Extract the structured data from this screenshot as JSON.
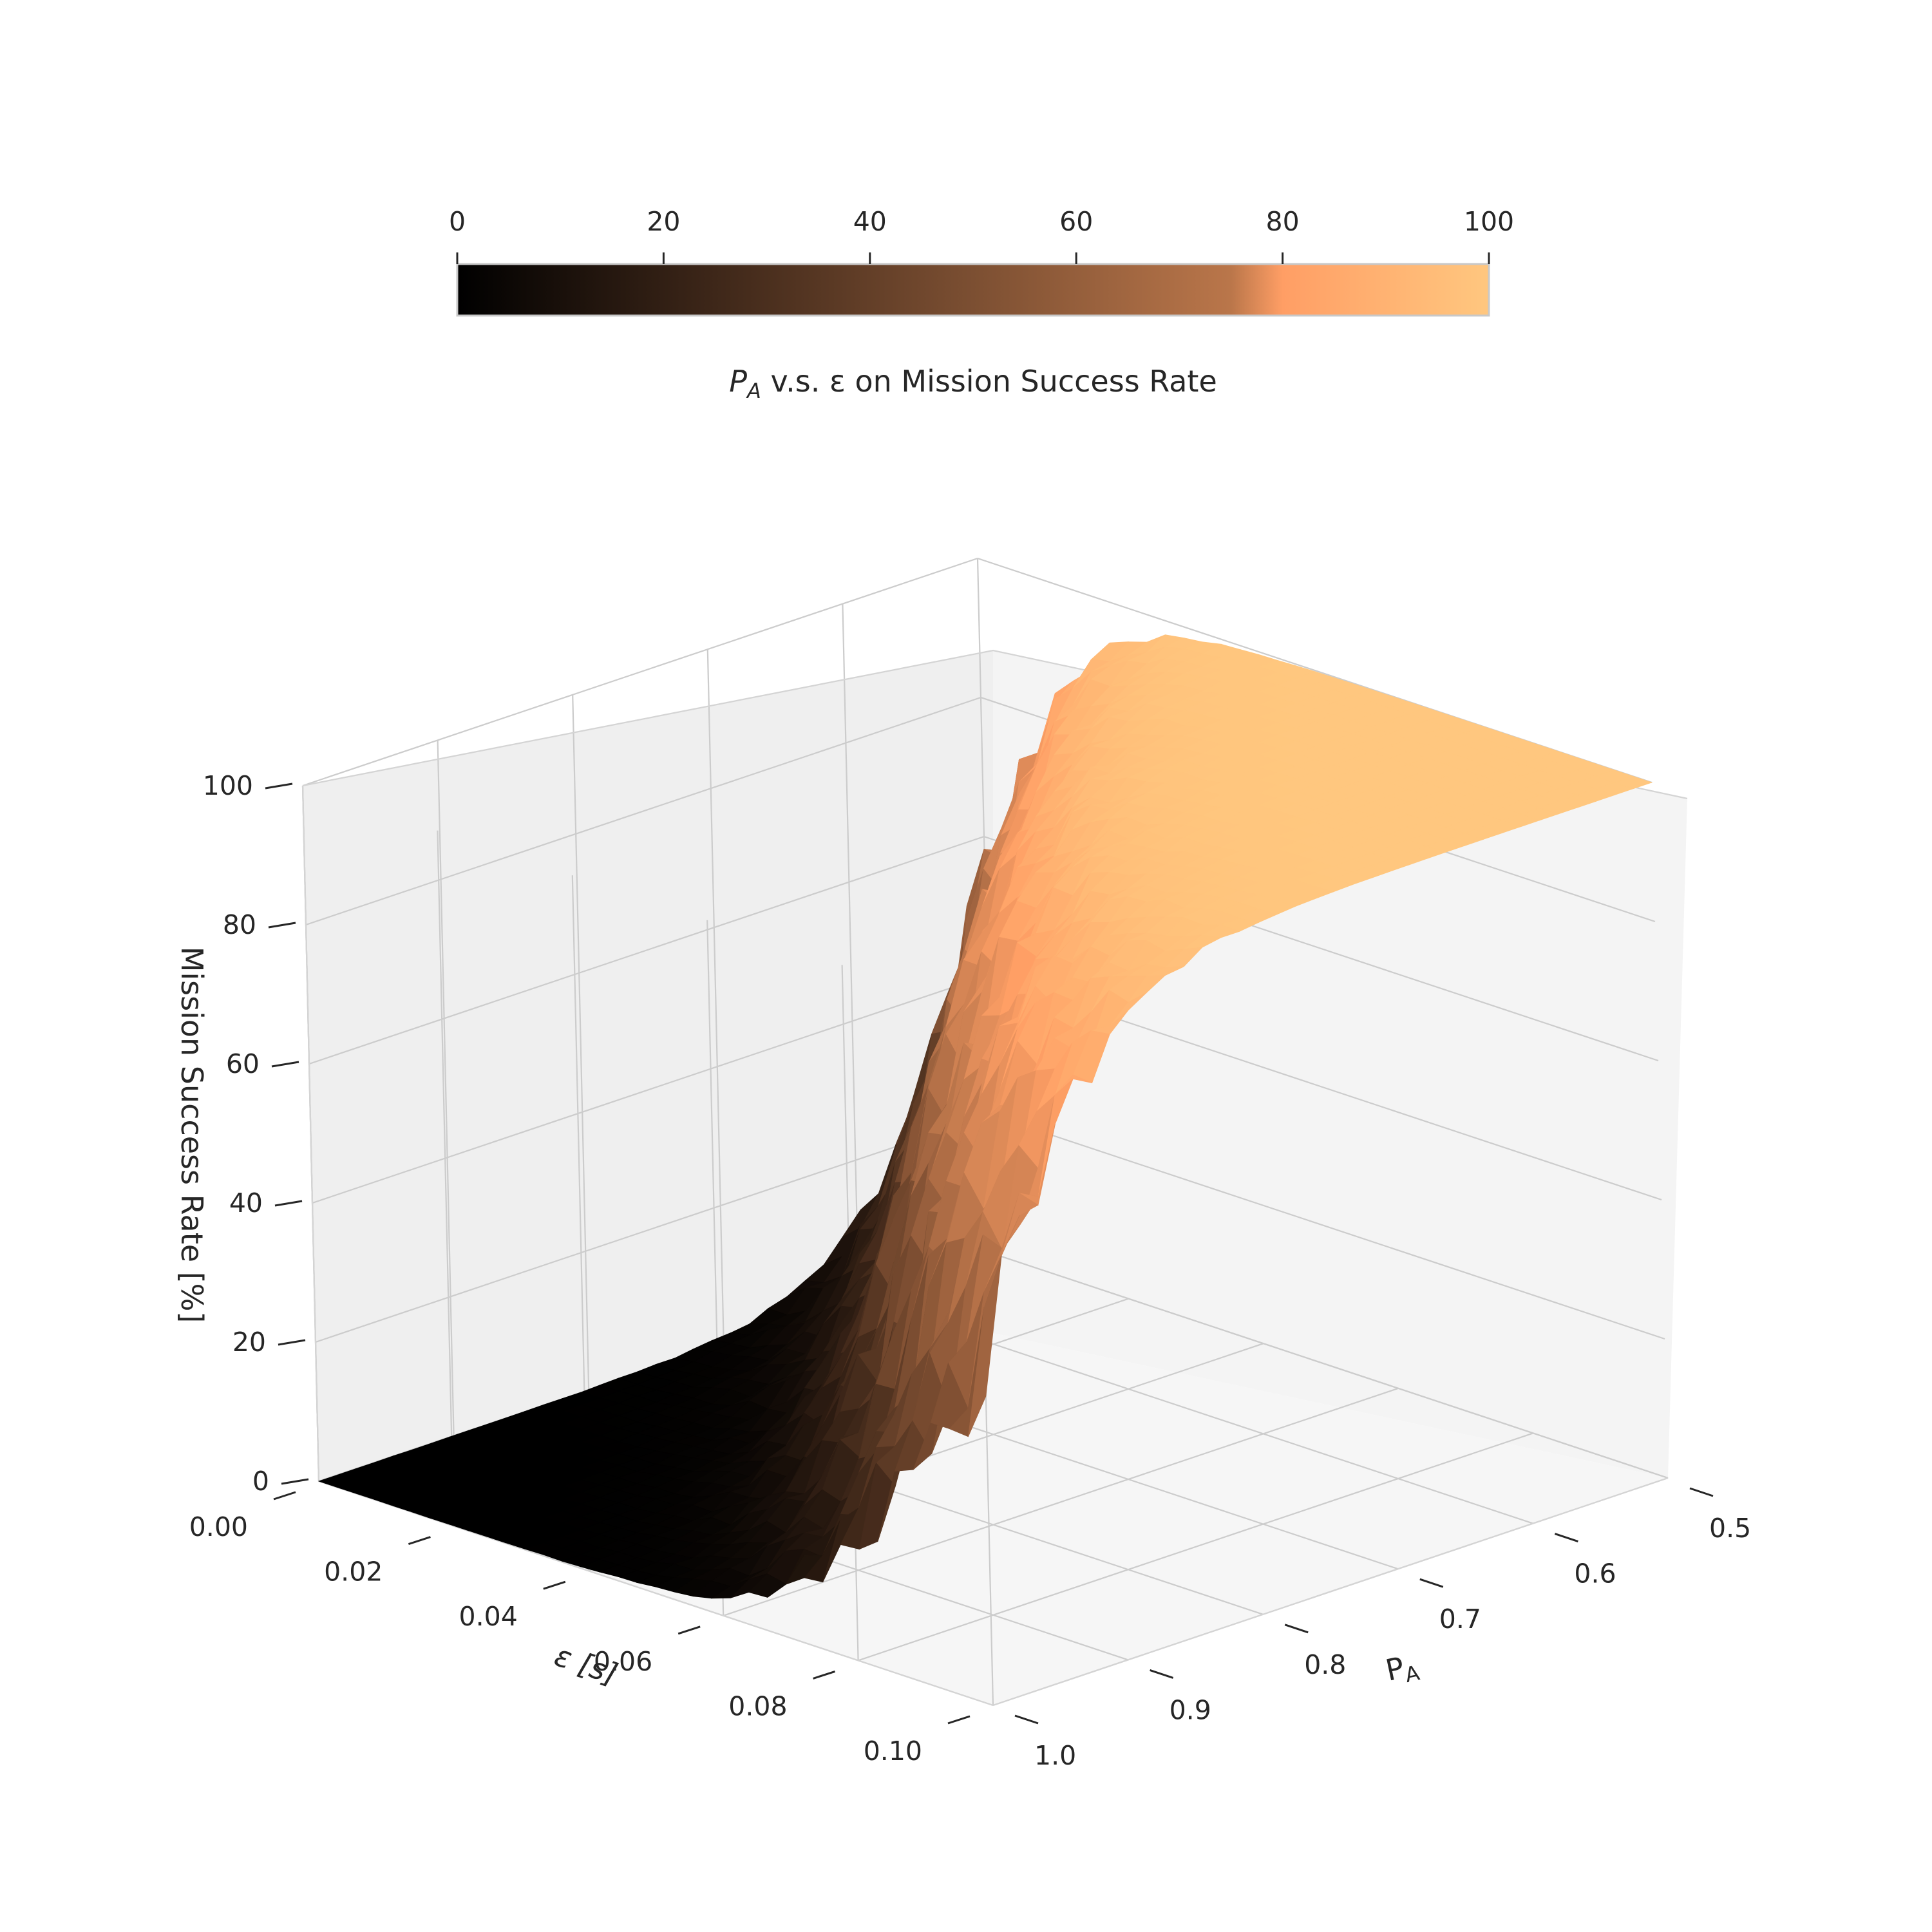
{
  "chart_data": {
    "type": "surface",
    "title": "",
    "colorbar": {
      "label_prefix": "P",
      "label_sub": "A",
      "label_rest": " v.s. ε on Mission Success Rate",
      "colormap": "copper",
      "ticks": [
        "0",
        "20",
        "40",
        "60",
        "80",
        "100"
      ],
      "range": [
        0,
        100
      ],
      "location": "top"
    },
    "axes": {
      "x": {
        "label_prefix": "P",
        "label_sub": "A",
        "range": [
          0.5,
          1.0
        ],
        "ticks": [
          "0.5",
          "0.6",
          "0.7",
          "0.8",
          "0.9",
          "1.0"
        ]
      },
      "y": {
        "label": "ε [s]",
        "range": [
          0.0,
          0.1
        ],
        "ticks": [
          "0.00",
          "0.02",
          "0.04",
          "0.06",
          "0.08",
          "0.10"
        ]
      },
      "z": {
        "label": "Mission Success Rate [%]",
        "range": [
          0,
          100
        ],
        "ticks": [
          "0",
          "20",
          "40",
          "60",
          "80",
          "100"
        ]
      }
    },
    "grid": true,
    "surface_description_values": {
      "p_a_at_50pct_success": [
        [
          0.0,
          0.505
        ],
        [
          0.02,
          0.62
        ],
        [
          0.04,
          0.74
        ],
        [
          0.06,
          0.84
        ],
        [
          0.08,
          0.93
        ],
        [
          0.1,
          1.0
        ]
      ],
      "plateau_max": 100,
      "floor_min": 0
    }
  }
}
